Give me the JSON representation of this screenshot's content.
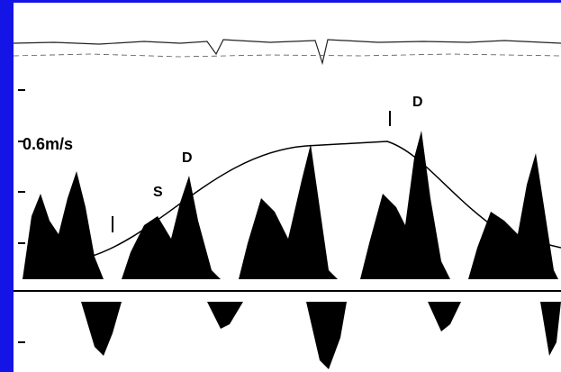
{
  "labels": {
    "velocity": "0.6m/s",
    "s_wave": "S",
    "d_wave_1": "D",
    "d_wave_2": "D"
  }
}
